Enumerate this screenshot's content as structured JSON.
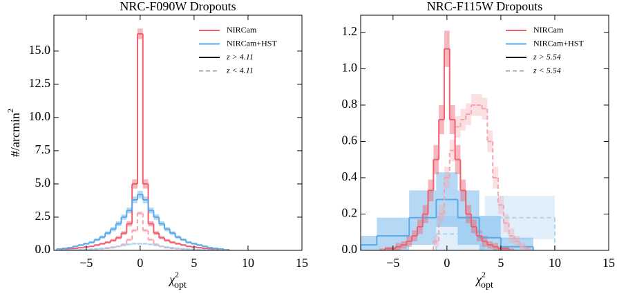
{
  "chart_data": [
    {
      "type": "step",
      "title": "NRC-F090W Dropouts",
      "xlabel": {
        "base": "χ",
        "sup": "2",
        "sub": "opt"
      },
      "ylabel": {
        "base": "#/arcmin",
        "sup": "2"
      },
      "xlim": [
        -8,
        15
      ],
      "ylim": [
        0,
        17.7
      ],
      "xticks": [
        {
          "value": -5,
          "label": "−5"
        },
        0,
        5,
        10,
        15
      ],
      "yticks": [
        {
          "value": 0,
          "label": "0.0"
        },
        {
          "value": 2.5,
          "label": "2.5"
        },
        {
          "value": 5,
          "label": "5.0"
        },
        {
          "value": 7.5,
          "label": "7.5"
        },
        {
          "value": 10,
          "label": "10.0"
        },
        {
          "value": 12.5,
          "label": "12.5"
        },
        {
          "value": 15,
          "label": "15.0"
        }
      ],
      "legend_position": "upper right",
      "legend": [
        {
          "label": "NIRCam",
          "color": "#f0606f",
          "dashed": false
        },
        {
          "label": "NIRCam+HST",
          "color": "#5aaae8",
          "dashed": false
        },
        {
          "label": "z > 4.11",
          "color": "#000000",
          "dashed": false
        },
        {
          "label": "z < 4.11",
          "color": "#aaaaaa",
          "dashed": true
        }
      ],
      "series": [
        {
          "color": "#f0606f",
          "dashed": false,
          "bins": [
            -7.75,
            -7.25,
            -6.75,
            -6.25,
            -5.75,
            -5.25,
            -4.75,
            -4.25,
            -3.75,
            -3.25,
            -2.75,
            -2.25,
            -1.75,
            -1.25,
            -0.75,
            -0.25,
            0.25,
            0.75,
            1.25,
            1.75,
            2.25,
            2.75,
            3.25,
            3.75,
            4.25,
            4.75,
            5.25,
            5.75,
            6.25,
            6.75,
            7.25,
            7.75,
            8.25
          ],
          "values": [
            0.05,
            0.1,
            0.12,
            0.15,
            0.2,
            0.25,
            0.3,
            0.4,
            0.5,
            0.6,
            0.75,
            0.95,
            1.3,
            2.0,
            5.0,
            16.3,
            5.0,
            2.0,
            1.3,
            0.95,
            0.75,
            0.6,
            0.5,
            0.4,
            0.3,
            0.25,
            0.2,
            0.15,
            0.1,
            0.08,
            0.05,
            0.03
          ],
          "errors": [
            0.02,
            0.03,
            0.03,
            0.04,
            0.05,
            0.05,
            0.06,
            0.07,
            0.08,
            0.09,
            0.1,
            0.12,
            0.15,
            0.2,
            0.35,
            0.4,
            0.35,
            0.2,
            0.15,
            0.12,
            0.1,
            0.09,
            0.08,
            0.07,
            0.06,
            0.05,
            0.05,
            0.04,
            0.03,
            0.03,
            0.02,
            0.02
          ]
        },
        {
          "color": "#5aaae8",
          "dashed": false,
          "bins": [
            -7.75,
            -7.25,
            -6.75,
            -6.25,
            -5.75,
            -5.25,
            -4.75,
            -4.25,
            -3.75,
            -3.25,
            -2.75,
            -2.25,
            -1.75,
            -1.25,
            -0.75,
            -0.25,
            0.25,
            0.75,
            1.25,
            1.75,
            2.25,
            2.75,
            3.25,
            3.75,
            4.25,
            4.75,
            5.25,
            5.75,
            6.25,
            6.75,
            7.25,
            7.75,
            8.25
          ],
          "values": [
            0.1,
            0.15,
            0.2,
            0.3,
            0.4,
            0.5,
            0.6,
            0.8,
            1.0,
            1.3,
            1.6,
            2.0,
            2.5,
            3.0,
            3.8,
            4.2,
            3.8,
            3.0,
            2.5,
            2.0,
            1.6,
            1.3,
            1.0,
            0.8,
            0.6,
            0.5,
            0.4,
            0.3,
            0.2,
            0.15,
            0.1,
            0.05
          ],
          "errors": [
            0.03,
            0.04,
            0.05,
            0.06,
            0.07,
            0.08,
            0.09,
            0.1,
            0.12,
            0.14,
            0.16,
            0.18,
            0.2,
            0.22,
            0.25,
            0.28,
            0.25,
            0.22,
            0.2,
            0.18,
            0.16,
            0.14,
            0.12,
            0.1,
            0.09,
            0.08,
            0.07,
            0.06,
            0.05,
            0.04,
            0.03,
            0.03
          ]
        },
        {
          "color": "#f5a3ad",
          "dashed": true,
          "bins": [
            -7.75,
            -7.25,
            -6.75,
            -6.25,
            -5.75,
            -5.25,
            -4.75,
            -4.25,
            -3.75,
            -3.25,
            -2.75,
            -2.25,
            -1.75,
            -1.25,
            -0.75,
            -0.25,
            0.25,
            0.75,
            1.25,
            1.75,
            2.25,
            2.75,
            3.25,
            3.75,
            4.25,
            4.75,
            5.25,
            5.75,
            6.25,
            6.75,
            7.25,
            7.75,
            8.25
          ],
          "values": [
            0.01,
            0.01,
            0.02,
            0.03,
            0.04,
            0.05,
            0.07,
            0.09,
            0.12,
            0.15,
            0.2,
            0.3,
            0.45,
            0.8,
            1.5,
            2.8,
            1.5,
            0.8,
            0.45,
            0.3,
            0.2,
            0.15,
            0.12,
            0.09,
            0.07,
            0.05,
            0.04,
            0.03,
            0.02,
            0.01,
            0.01,
            0.01
          ],
          "errors": [
            0.01,
            0.01,
            0.01,
            0.01,
            0.02,
            0.02,
            0.02,
            0.03,
            0.03,
            0.04,
            0.05,
            0.06,
            0.08,
            0.1,
            0.12,
            0.15,
            0.12,
            0.1,
            0.08,
            0.06,
            0.05,
            0.04,
            0.03,
            0.03,
            0.02,
            0.02,
            0.02,
            0.01,
            0.01,
            0.01,
            0.01,
            0.01
          ]
        },
        {
          "color": "#a9d2f3",
          "dashed": true,
          "bins": [
            -7.75,
            -7.25,
            -6.75,
            -6.25,
            -5.75,
            -5.25,
            -4.75,
            -4.25,
            -3.75,
            -3.25,
            -2.75,
            -2.25,
            -1.75,
            -1.25,
            -0.75,
            -0.25,
            0.25,
            0.75,
            1.25,
            1.75,
            2.25,
            2.75,
            3.25,
            3.75,
            4.25,
            4.75,
            5.25,
            5.75,
            6.25,
            6.75,
            7.25,
            7.75,
            8.25
          ],
          "values": [
            0.01,
            0.02,
            0.03,
            0.04,
            0.05,
            0.07,
            0.09,
            0.12,
            0.15,
            0.2,
            0.25,
            0.3,
            0.38,
            0.45,
            0.5,
            0.5,
            0.5,
            0.45,
            0.38,
            0.3,
            0.25,
            0.2,
            0.15,
            0.12,
            0.09,
            0.07,
            0.05,
            0.04,
            0.03,
            0.02,
            0.01,
            0.01
          ],
          "errors": [
            0.02,
            0.02,
            0.03,
            0.03,
            0.04,
            0.04,
            0.05,
            0.05,
            0.06,
            0.06,
            0.07,
            0.07,
            0.08,
            0.08,
            0.08,
            0.08,
            0.08,
            0.08,
            0.08,
            0.07,
            0.07,
            0.06,
            0.06,
            0.05,
            0.05,
            0.04,
            0.04,
            0.03,
            0.03,
            0.02,
            0.02,
            0.02
          ]
        }
      ]
    },
    {
      "type": "step",
      "title": "NRC-F115W Dropouts",
      "xlabel": {
        "base": "χ",
        "sup": "2",
        "sub": "opt"
      },
      "xlim": [
        -8,
        15
      ],
      "ylim": [
        0,
        1.295
      ],
      "xticks": [
        {
          "value": -5,
          "label": "−5"
        },
        0,
        5,
        10,
        15
      ],
      "yticks": [
        {
          "value": 0,
          "label": "0.0"
        },
        0.2,
        0.4,
        0.6,
        0.8,
        {
          "value": 1,
          "label": "1.0"
        },
        1.2
      ],
      "legend_position": "upper right",
      "legend": [
        {
          "label": "NIRCam",
          "color": "#f0606f",
          "dashed": false
        },
        {
          "label": "NIRCam+HST",
          "color": "#5aaae8",
          "dashed": false
        },
        {
          "label": "z > 5.54",
          "color": "#000000",
          "dashed": false
        },
        {
          "label": "z < 5.54",
          "color": "#aaaaaa",
          "dashed": true
        }
      ],
      "series": [
        {
          "color": "#a9d2f3",
          "dashed": true,
          "bins": [
            -1,
            3.5,
            10
          ],
          "values": [
            0.09,
            0.18
          ],
          "errors": [
            0.1,
            0.12
          ]
        },
        {
          "color": "#5aaae8",
          "dashed": false,
          "bins": [
            -8,
            -6.5,
            -3.5,
            -1,
            1,
            3,
            5,
            8
          ],
          "values": [
            0.03,
            0.08,
            0.18,
            0.28,
            0.18,
            0.07,
            0.02
          ],
          "errors": [
            0.05,
            0.1,
            0.15,
            0.15,
            0.15,
            0.12,
            0.05
          ]
        },
        {
          "color": "#f5a3ad",
          "dashed": true,
          "bins": [
            -1.25,
            -0.75,
            -0.25,
            0.25,
            0.75,
            1.25,
            1.75,
            2.25,
            2.75,
            3.25,
            3.75,
            4.25,
            4.75,
            5.25,
            5.75,
            6.25,
            6.75,
            7.25,
            7.75
          ],
          "values": [
            0.05,
            0.2,
            0.4,
            0.55,
            0.68,
            0.72,
            0.75,
            0.8,
            0.8,
            0.78,
            0.6,
            0.4,
            0.25,
            0.15,
            0.08,
            0.05,
            0.02,
            0.01
          ],
          "errors": [
            0.03,
            0.05,
            0.06,
            0.06,
            0.06,
            0.06,
            0.06,
            0.06,
            0.06,
            0.06,
            0.06,
            0.06,
            0.05,
            0.05,
            0.04,
            0.03,
            0.02,
            0.01
          ]
        },
        {
          "color": "#f0606f",
          "dashed": false,
          "bins": [
            -6.25,
            -5.75,
            -5.25,
            -4.75,
            -4.25,
            -3.75,
            -3.25,
            -2.75,
            -2.25,
            -1.75,
            -1.25,
            -0.75,
            -0.25,
            0.25,
            0.75,
            1.25,
            1.75,
            2.25,
            2.75,
            3.25,
            3.75,
            4.25,
            4.75,
            5.25,
            5.75,
            6.25
          ],
          "values": [
            0,
            0.01,
            0.01,
            0.02,
            0.03,
            0.05,
            0.08,
            0.13,
            0.2,
            0.33,
            0.5,
            0.72,
            1.11,
            0.72,
            0.5,
            0.33,
            0.2,
            0.13,
            0.08,
            0.05,
            0.03,
            0.02,
            0.01,
            0.01,
            0
          ],
          "errors": [
            0.01,
            0.01,
            0.01,
            0.02,
            0.02,
            0.03,
            0.03,
            0.04,
            0.05,
            0.06,
            0.08,
            0.08,
            0.1,
            0.08,
            0.08,
            0.06,
            0.05,
            0.04,
            0.03,
            0.03,
            0.02,
            0.02,
            0.01,
            0.01,
            0.01
          ]
        }
      ]
    }
  ]
}
